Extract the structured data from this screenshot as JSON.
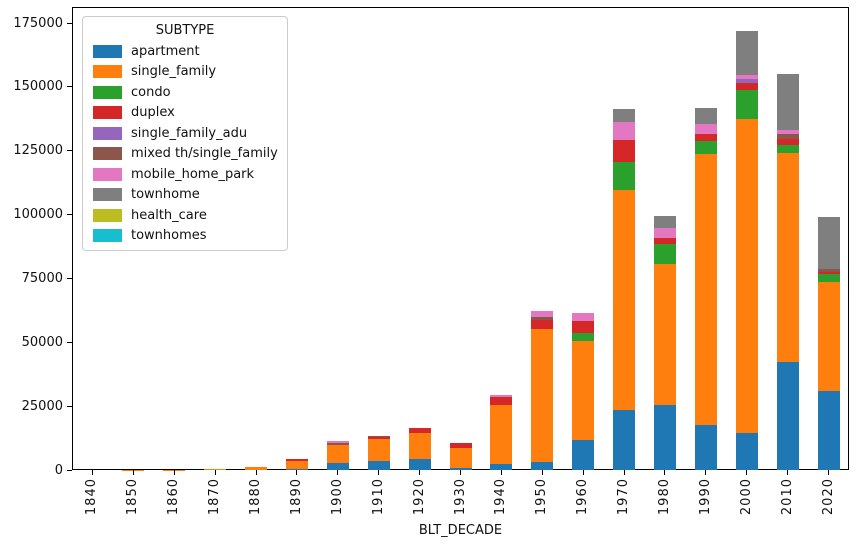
{
  "chart_data": {
    "type": "bar",
    "stacked": true,
    "title": "",
    "xlabel": "BLT_DECADE",
    "ylabel": "",
    "ylim": [
      0,
      180000
    ],
    "yticks": [
      0,
      25000,
      50000,
      75000,
      100000,
      125000,
      150000,
      175000
    ],
    "grid": false,
    "legend": {
      "title": "SUBTYPE",
      "position": "upper left"
    },
    "categories": [
      "1840",
      "1850",
      "1860",
      "1870",
      "1880",
      "1890",
      "1900",
      "1910",
      "1920",
      "1930",
      "1940",
      "1950",
      "1960",
      "1970",
      "1980",
      "1990",
      "2000",
      "2010",
      "2020"
    ],
    "series": [
      {
        "name": "apartment",
        "color": "#1f77b4",
        "values": [
          0,
          0,
          0,
          0,
          0,
          300,
          2600,
          3700,
          4200,
          900,
          2350,
          3250,
          11750,
          23500,
          25400,
          17600,
          14600,
          42200,
          30900
        ]
      },
      {
        "name": "single_family",
        "color": "#ff7f0e",
        "values": [
          20,
          40,
          100,
          300,
          1100,
          3200,
          7050,
          8500,
          10100,
          7700,
          23100,
          51950,
          38760,
          86100,
          55100,
          106100,
          123000,
          82060,
          42700
        ]
      },
      {
        "name": "condo",
        "color": "#2ca02c",
        "values": [
          0,
          0,
          0,
          0,
          0,
          0,
          0,
          0,
          0,
          0,
          0,
          0,
          3000,
          11100,
          7850,
          4950,
          11100,
          3100,
          3100
        ]
      },
      {
        "name": "duplex",
        "color": "#d62728",
        "values": [
          0,
          0,
          0,
          0,
          0,
          700,
          0,
          800,
          2000,
          1950,
          3000,
          3400,
          4800,
          8500,
          2350,
          3000,
          3000,
          2350,
          900
        ]
      },
      {
        "name": "single_family_adu",
        "color": "#9467bd",
        "values": [
          0,
          0,
          0,
          0,
          0,
          0,
          0,
          0,
          0,
          0,
          0,
          0,
          0,
          0,
          0,
          0,
          1300,
          0,
          0
        ]
      },
      {
        "name": "mixed th/single_family",
        "color": "#8c564b",
        "values": [
          0,
          0,
          0,
          0,
          0,
          0,
          800,
          500,
          0,
          0,
          0,
          1300,
          0,
          0,
          0,
          0,
          0,
          1700,
          1200
        ]
      },
      {
        "name": "mobile_home_park",
        "color": "#e377c2",
        "values": [
          0,
          0,
          0,
          0,
          0,
          0,
          900,
          0,
          0,
          0,
          900,
          2350,
          3000,
          7150,
          3900,
          3900,
          1550,
          1550,
          0
        ]
      },
      {
        "name": "townhome",
        "color": "#7f7f7f",
        "values": [
          0,
          0,
          0,
          0,
          0,
          0,
          0,
          0,
          0,
          0,
          0,
          0,
          0,
          4950,
          4800,
          6250,
          17250,
          21900,
          20100
        ]
      },
      {
        "name": "health_care",
        "color": "#bcbd22",
        "values": [
          0,
          0,
          0,
          0,
          0,
          0,
          0,
          0,
          0,
          0,
          0,
          0,
          0,
          0,
          0,
          0,
          0,
          0,
          0
        ]
      },
      {
        "name": "townhomes",
        "color": "#17becf",
        "values": [
          0,
          0,
          0,
          0,
          0,
          0,
          0,
          0,
          0,
          0,
          0,
          0,
          0,
          0,
          0,
          0,
          0,
          0,
          0
        ]
      }
    ]
  }
}
